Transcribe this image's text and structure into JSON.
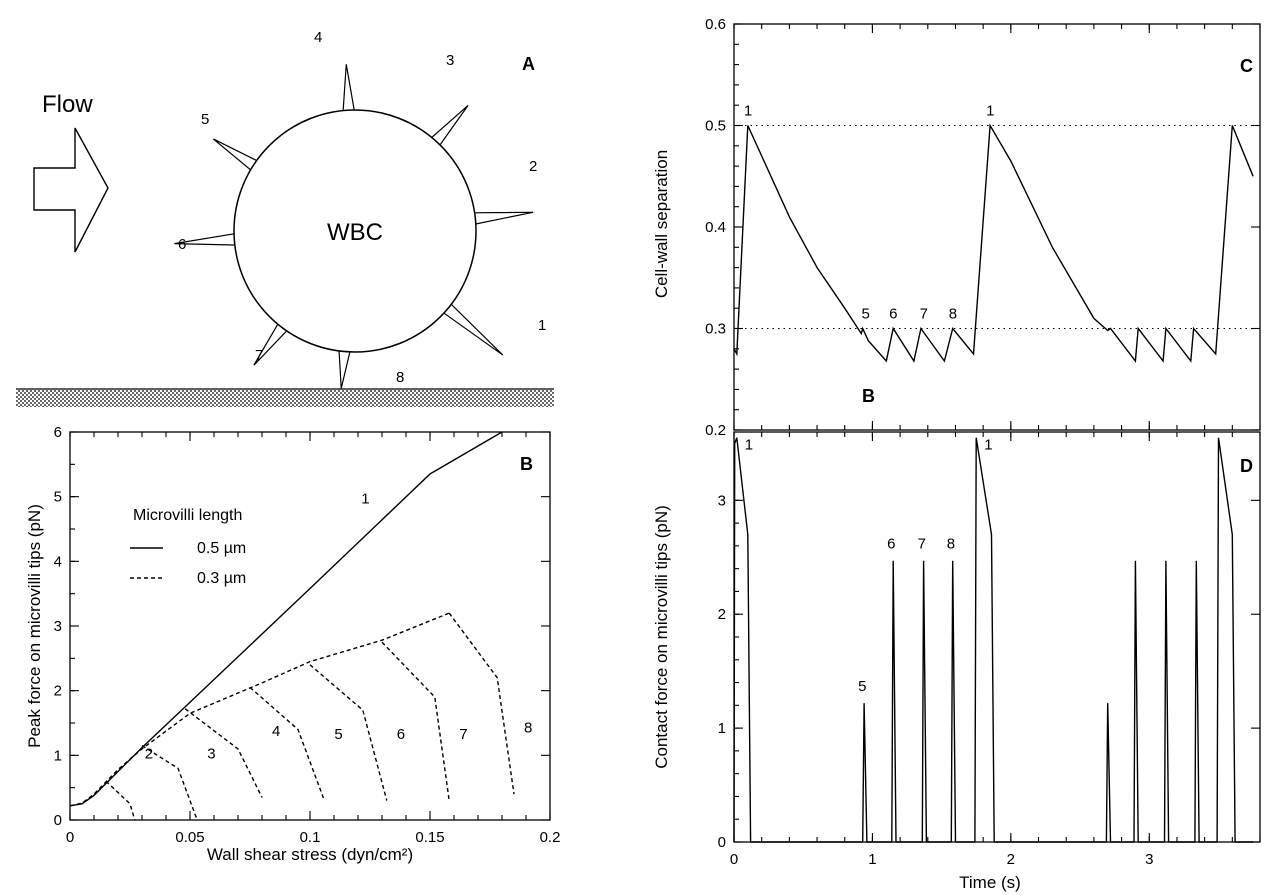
{
  "panel_a": {
    "letter": "A",
    "flow_label": "Flow",
    "cell_label": "WBC",
    "microvilli": [
      "1",
      "2",
      "3",
      "4",
      "5",
      "6",
      "7",
      "8"
    ]
  },
  "chart_data": [
    {
      "type": "line",
      "panel_letter": "B",
      "xlabel": "Wall shear stress (dyn/cm²)",
      "ylabel": "Peak force on microvilli tips (pN)",
      "xlim": [
        0,
        0.2
      ],
      "ylim": [
        0,
        6
      ],
      "xticks": [
        "0",
        "0.05",
        "0.1",
        "0.15",
        "0.2"
      ],
      "yticks": [
        "0",
        "1",
        "2",
        "3",
        "4",
        "5",
        "6"
      ],
      "legend": {
        "title": "Microvilli length",
        "placement": "top-left",
        "entries": [
          {
            "label": "0.5 µm",
            "style": "solid"
          },
          {
            "label": "0.3 µm",
            "style": "dashed"
          }
        ]
      },
      "series": [
        {
          "label": "1",
          "style": "solid",
          "x": [
            0,
            0.005,
            0.01,
            0.02,
            0.03,
            0.05,
            0.1,
            0.15,
            0.18
          ],
          "y": [
            0.22,
            0.25,
            0.38,
            0.75,
            1.12,
            1.82,
            3.58,
            5.35,
            6.0
          ]
        },
        {
          "style": "dashed",
          "x": [
            0,
            0.005,
            0.01,
            0.02,
            0.03,
            0.05,
            0.08,
            0.1,
            0.13,
            0.158
          ],
          "y": [
            0.22,
            0.26,
            0.4,
            0.78,
            1.1,
            1.65,
            2.12,
            2.45,
            2.78,
            3.2
          ]
        },
        {
          "label": "2",
          "style": "dashed",
          "x": [
            0.015,
            0.025,
            0.027
          ],
          "y": [
            0.6,
            0.25,
            0.0
          ]
        },
        {
          "label": "3",
          "style": "dashed",
          "x": [
            0.03,
            0.045,
            0.053
          ],
          "y": [
            1.15,
            0.8,
            0.0
          ]
        },
        {
          "label": "4",
          "style": "dashed",
          "x": [
            0.048,
            0.07,
            0.08
          ],
          "y": [
            1.72,
            1.1,
            0.35
          ]
        },
        {
          "label": "5",
          "style": "dashed",
          "x": [
            0.075,
            0.095,
            0.106
          ],
          "y": [
            2.05,
            1.4,
            0.3
          ]
        },
        {
          "label": "6",
          "style": "dashed",
          "x": [
            0.1,
            0.122,
            0.132
          ],
          "y": [
            2.4,
            1.7,
            0.3
          ]
        },
        {
          "label": "7",
          "style": "dashed",
          "x": [
            0.13,
            0.152,
            0.158
          ],
          "y": [
            2.75,
            1.9,
            0.3
          ]
        },
        {
          "label": "8",
          "style": "dashed",
          "x": [
            0.158,
            0.178,
            0.185
          ],
          "y": [
            3.2,
            2.2,
            0.4
          ]
        }
      ]
    },
    {
      "type": "line",
      "panel_letter": "C",
      "corner_label": "B",
      "ylabel": "Cell-wall separation",
      "xlim": [
        0,
        3.8
      ],
      "ylim": [
        0.2,
        0.6
      ],
      "yticks": [
        "0.2",
        "0.3",
        "0.4",
        "0.5",
        "0.6"
      ],
      "reference_lines": [
        0.5,
        0.3
      ],
      "annotations": [
        {
          "text": "1",
          "x": 0.1,
          "y": 0.5
        },
        {
          "text": "5",
          "x": 0.95,
          "y": 0.3
        },
        {
          "text": "6",
          "x": 1.15,
          "y": 0.3
        },
        {
          "text": "7",
          "x": 1.37,
          "y": 0.3
        },
        {
          "text": "8",
          "x": 1.58,
          "y": 0.3
        },
        {
          "text": "1",
          "x": 1.85,
          "y": 0.5
        }
      ],
      "series": [
        {
          "x": [
            0,
            0.02,
            0.1,
            0.2,
            0.4,
            0.6,
            0.8,
            0.92,
            0.93,
            0.97,
            1.1,
            1.15,
            1.3,
            1.35,
            1.52,
            1.58,
            1.73,
            1.85,
            2.0,
            2.3,
            2.6,
            2.7,
            2.72,
            2.9,
            2.92,
            3.1,
            3.12,
            3.3,
            3.32,
            3.48,
            3.6,
            3.75
          ],
          "y": [
            0.28,
            0.275,
            0.5,
            0.47,
            0.41,
            0.36,
            0.32,
            0.295,
            0.3,
            0.288,
            0.268,
            0.3,
            0.268,
            0.3,
            0.268,
            0.3,
            0.275,
            0.5,
            0.465,
            0.38,
            0.31,
            0.298,
            0.3,
            0.268,
            0.3,
            0.268,
            0.3,
            0.268,
            0.3,
            0.275,
            0.5,
            0.45
          ]
        }
      ]
    },
    {
      "type": "line",
      "panel_letter": "D",
      "xlabel": "Time (s)",
      "ylabel": "Contact force on microvilli tips (pN)",
      "xlim": [
        0,
        3.8
      ],
      "ylim": [
        0,
        3.6
      ],
      "xticks": [
        "0",
        "1",
        "2",
        "3",
        "4"
      ],
      "yticks": [
        "0",
        "1",
        "2",
        "3"
      ],
      "annotations": [
        {
          "text": "1",
          "x": 0.02,
          "y": 3.55
        },
        {
          "text": "5",
          "x": 0.94,
          "y": 1.22
        },
        {
          "text": "6",
          "x": 1.15,
          "y": 2.47
        },
        {
          "text": "7",
          "x": 1.37,
          "y": 2.47
        },
        {
          "text": "8",
          "x": 1.58,
          "y": 2.47
        },
        {
          "text": "1",
          "x": 1.75,
          "y": 3.55
        }
      ],
      "series": [
        {
          "x": [
            0,
            0.005,
            0.02,
            0.1,
            0.12,
            0.93,
            0.94,
            0.96,
            1.14,
            1.15,
            1.17,
            1.36,
            1.37,
            1.39,
            1.57,
            1.58,
            1.6,
            1.74,
            1.75,
            1.86,
            1.88,
            2.69,
            2.7,
            2.72,
            2.89,
            2.9,
            2.92,
            3.11,
            3.12,
            3.14,
            3.33,
            3.34,
            3.36,
            3.49,
            3.5,
            3.6,
            3.62,
            3.75
          ],
          "y": [
            0,
            3.5,
            3.55,
            2.7,
            0,
            0,
            1.22,
            0,
            0,
            2.47,
            0,
            0,
            2.47,
            0,
            0,
            2.47,
            0,
            0,
            3.55,
            2.7,
            0,
            0,
            1.22,
            0,
            0,
            2.47,
            0,
            0,
            2.47,
            0,
            0,
            2.47,
            0,
            0,
            3.55,
            2.7,
            0,
            0
          ]
        }
      ]
    }
  ]
}
